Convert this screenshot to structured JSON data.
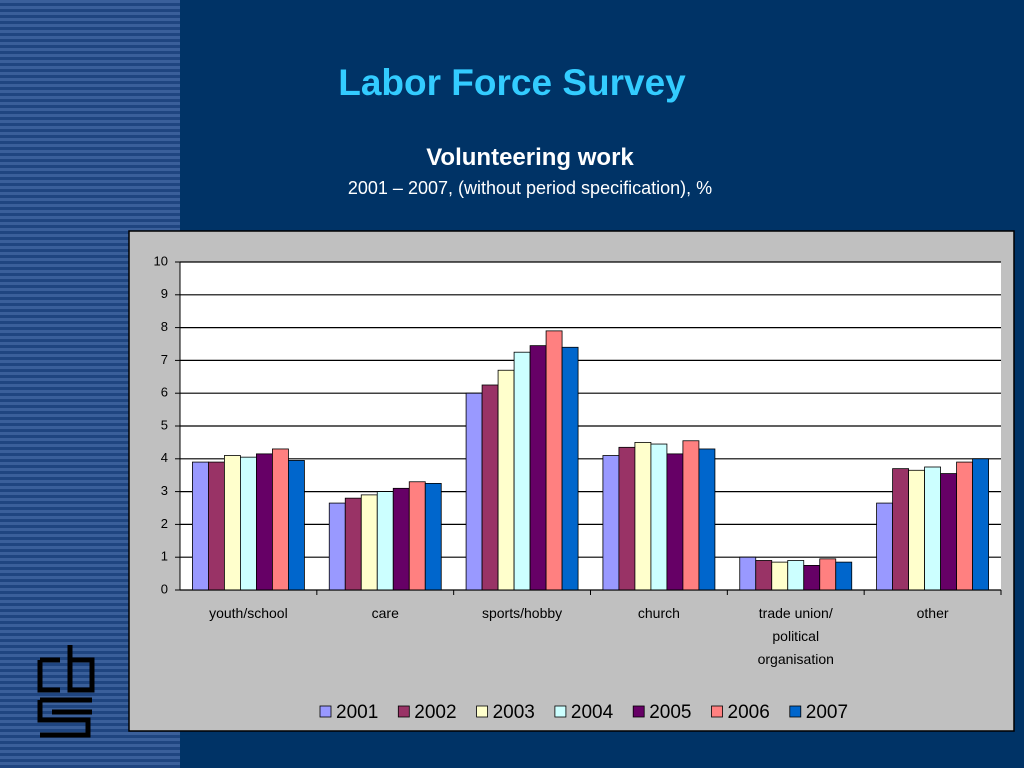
{
  "slide": {
    "title": "Labor Force Survey"
  },
  "chart_data": {
    "type": "bar",
    "title": "Volunteering work",
    "subtitle": "2001 – 2007, (without period specification), %",
    "categories": [
      "youth/school",
      "care",
      "sports/hobby",
      "church",
      "trade union/ political organisation",
      "other"
    ],
    "series": [
      {
        "name": "2001",
        "color": "#9999ff",
        "values": [
          3.9,
          2.65,
          6.0,
          4.1,
          1.0,
          2.65
        ]
      },
      {
        "name": "2002",
        "color": "#993366",
        "values": [
          3.9,
          2.8,
          6.25,
          4.35,
          0.9,
          3.7
        ]
      },
      {
        "name": "2003",
        "color": "#ffffcc",
        "values": [
          4.1,
          2.9,
          6.7,
          4.5,
          0.85,
          3.65
        ]
      },
      {
        "name": "2004",
        "color": "#ccffff",
        "values": [
          4.05,
          3.0,
          7.25,
          4.45,
          0.9,
          3.75
        ]
      },
      {
        "name": "2005",
        "color": "#660066",
        "values": [
          4.15,
          3.1,
          7.45,
          4.15,
          0.75,
          3.55
        ]
      },
      {
        "name": "2006",
        "color": "#ff8080",
        "values": [
          4.3,
          3.3,
          7.9,
          4.55,
          0.95,
          3.9
        ]
      },
      {
        "name": "2007",
        "color": "#0066cc",
        "values": [
          3.95,
          3.25,
          7.4,
          4.3,
          0.85,
          4.0
        ]
      }
    ],
    "ylim": [
      0,
      10
    ],
    "yticks": [
      0,
      1,
      2,
      3,
      4,
      5,
      6,
      7,
      8,
      9,
      10
    ],
    "grid": true,
    "legend": "bottom"
  }
}
